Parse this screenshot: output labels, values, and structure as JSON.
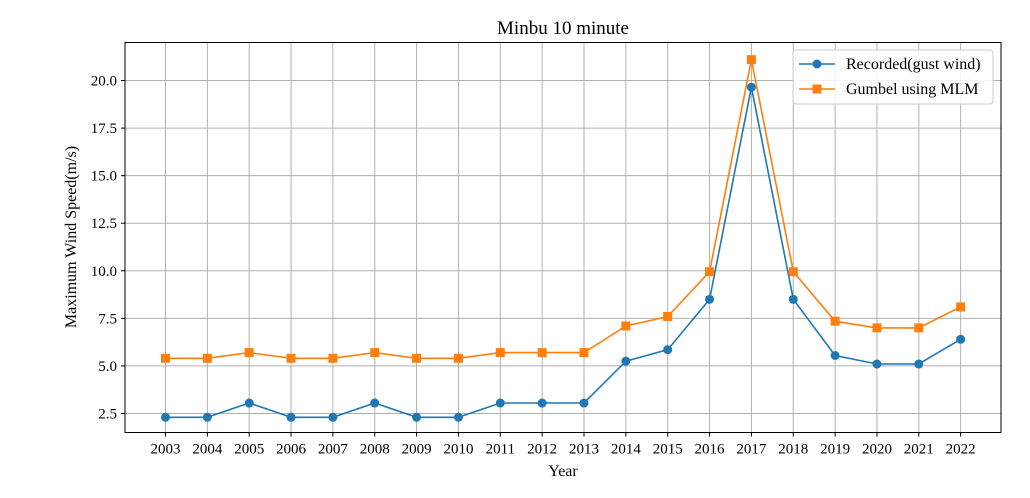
{
  "chart_data": {
    "type": "line",
    "title": "Minbu 10 minute",
    "xlabel": "Year",
    "ylabel": "Maximum Wind Speed(m/s)",
    "categories": [
      "2003",
      "2004",
      "2005",
      "2006",
      "2007",
      "2008",
      "2009",
      "2010",
      "2011",
      "2012",
      "2013",
      "2014",
      "2015",
      "2016",
      "2017",
      "2018",
      "2019",
      "2020",
      "2021",
      "2022"
    ],
    "ylim": [
      1.5,
      22.0
    ],
    "yticks": [
      "2.5",
      "5.0",
      "7.5",
      "10.0",
      "12.5",
      "15.0",
      "17.5",
      "20.0"
    ],
    "grid": true,
    "legend_position": "top-right",
    "series": [
      {
        "name": "Recorded(gust wind)",
        "color": "#1f77b4",
        "marker": "circle",
        "values": [
          2.3,
          2.3,
          3.05,
          2.3,
          2.3,
          3.05,
          2.3,
          2.3,
          3.05,
          3.05,
          3.05,
          5.25,
          5.85,
          8.5,
          19.65,
          8.5,
          5.55,
          5.1,
          5.1,
          6.4
        ]
      },
      {
        "name": "Gumbel using MLM",
        "color": "#ff7f0e",
        "marker": "square",
        "values": [
          5.4,
          5.4,
          5.7,
          5.4,
          5.4,
          5.7,
          5.4,
          5.4,
          5.7,
          5.7,
          5.7,
          7.1,
          7.6,
          9.95,
          21.1,
          9.95,
          7.35,
          7.0,
          7.0,
          8.1
        ]
      }
    ]
  }
}
